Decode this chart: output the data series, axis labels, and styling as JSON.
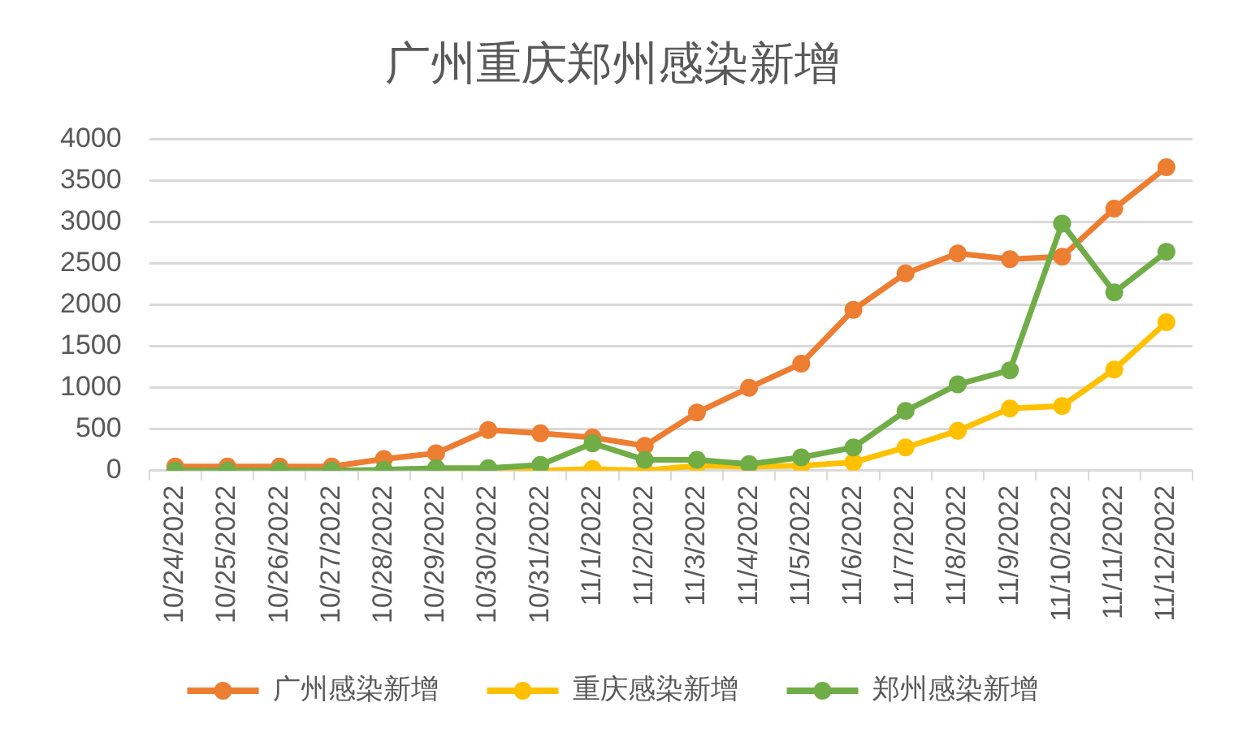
{
  "chart_data": {
    "type": "line",
    "title": "广州重庆郑州感染新增",
    "categories": [
      "10/24/2022",
      "10/25/2022",
      "10/26/2022",
      "10/27/2022",
      "10/28/2022",
      "10/29/2022",
      "10/30/2022",
      "10/31/2022",
      "11/1/2022",
      "11/2/2022",
      "11/3/2022",
      "11/4/2022",
      "11/5/2022",
      "11/6/2022",
      "11/7/2022",
      "11/8/2022",
      "11/9/2022",
      "11/10/2022",
      "11/11/2022",
      "11/12/2022"
    ],
    "series": [
      {
        "name": "广州感染新增",
        "color": "#ed7d31",
        "values": [
          50,
          50,
          50,
          50,
          140,
          210,
          490,
          450,
          400,
          300,
          700,
          1000,
          1290,
          1940,
          2380,
          2620,
          2550,
          2580,
          3160,
          3660
        ]
      },
      {
        "name": "重庆感染新增",
        "color": "#ffc000",
        "values": [
          null,
          null,
          null,
          null,
          null,
          0,
          null,
          0,
          20,
          0,
          60,
          50,
          60,
          100,
          280,
          480,
          750,
          780,
          1220,
          1790
        ]
      },
      {
        "name": "郑州感染新增",
        "color": "#70ad47",
        "values": [
          0,
          0,
          0,
          0,
          10,
          30,
          30,
          70,
          330,
          130,
          130,
          80,
          160,
          280,
          720,
          1040,
          1210,
          2980,
          2150,
          2640
        ]
      }
    ],
    "ylim": [
      0,
      4000
    ],
    "yticks": [
      0,
      500,
      1000,
      1500,
      2000,
      2500,
      3000,
      3500,
      4000
    ],
    "grid": "y",
    "legend": "bottom",
    "marker": "circle",
    "line_style": "solid"
  }
}
